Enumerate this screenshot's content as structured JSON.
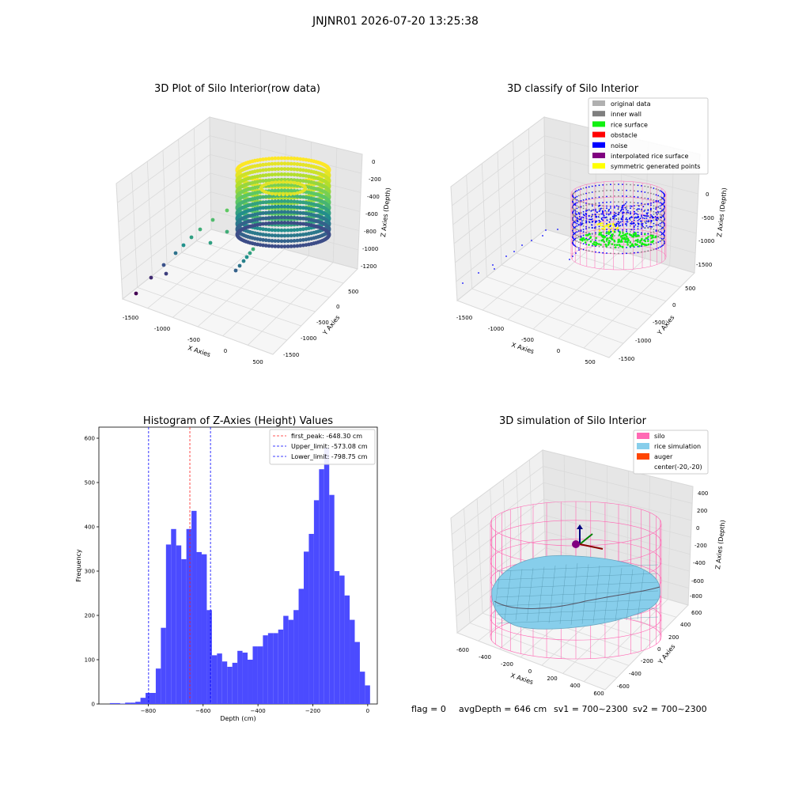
{
  "figure": {
    "suptitle": "JNJNR01 2026-07-20 13:25:38",
    "footer": {
      "flag": "flag = 0",
      "avg_depth": "avgDepth = 646 cm",
      "sv1": "sv1 = 700~2300",
      "sv2": "sv2 = 700~2300"
    }
  },
  "colors": {
    "hist_bar": "#4b4bff",
    "first_peak": "#ff2020",
    "limits": "#0000ff",
    "original": "#b0b0b0",
    "inner_wall": "#7f7f7f",
    "rice_surface": "#10f010",
    "obstacle": "#ff0000",
    "noise": "#0000ff",
    "interp": "#800080",
    "symmetric": "#ffff00",
    "silo": "#ff69b4",
    "rice_sim": "#87ceeb",
    "auger": "#ff4500"
  },
  "chart_data": [
    {
      "type": "scatter",
      "title": "3D Plot of Silo Interior(row data)",
      "xlabel": "X Axies",
      "ylabel": "Y Axies",
      "zlabel": "Z Axies (Depth)",
      "x_ticks": [
        "-1500",
        "-1000",
        "-500",
        "0",
        "500"
      ],
      "y_ticks": [
        "500",
        "0",
        "-500",
        "-1000",
        "-1500"
      ],
      "z_ticks": [
        "0",
        "-200",
        "-400",
        "-600",
        "-800",
        "-1000",
        "-1200"
      ],
      "colormap": "viridis"
    },
    {
      "type": "scatter",
      "title": "3D classify of Silo Interior",
      "xlabel": "X Axies",
      "ylabel": "Y Axies",
      "zlabel": "Z Axies (Depth)",
      "x_ticks": [
        "-1500",
        "-1000",
        "-500",
        "0",
        "500"
      ],
      "y_ticks": [
        "500",
        "0",
        "-500",
        "-1000",
        "-1500"
      ],
      "z_ticks": [
        "0",
        "-500",
        "-1000",
        "-1500"
      ],
      "legend": [
        "original data",
        "inner wall",
        "rice surface",
        "obstacle",
        "noise",
        "interpolated rice surface",
        "symmetric generated points"
      ],
      "legend_loc": "top-right"
    },
    {
      "type": "bar",
      "title": "Histogram of Z-Axies (Height) Values",
      "xlabel": "Depth (cm)",
      "ylabel": "Frequency",
      "xlim": [
        -980,
        35
      ],
      "ylim": [
        0,
        625
      ],
      "x_ticks": [
        -800,
        -600,
        -400,
        -200,
        0
      ],
      "y_ticks": [
        0,
        100,
        200,
        300,
        400,
        500,
        600
      ],
      "bin_width": 18.6,
      "bin_starts": [
        -940,
        -921.4,
        -902.8,
        -884.2,
        -865.6,
        -847,
        -828.4,
        -809.8,
        -791.2,
        -772.6,
        -754,
        -735.4,
        -716.8,
        -698.2,
        -679.6,
        -661,
        -642.4,
        -623.8,
        -605.2,
        -586.6,
        -568,
        -549.4,
        -530.8,
        -512.2,
        -493.6,
        -475,
        -456.4,
        -437.8,
        -419.2,
        -400.6,
        -382,
        -363.4,
        -344.8,
        -326.2,
        -307.6,
        -289,
        -270.4,
        -251.8,
        -233.2,
        -214.6,
        -196,
        -177.4,
        -158.8,
        -140.2,
        -121.6,
        -103,
        -84.4,
        -65.8,
        -47.2,
        -28.6,
        -10
      ],
      "values": [
        2,
        2,
        1,
        3,
        3,
        5,
        14,
        25,
        25,
        80,
        172,
        360,
        395,
        358,
        327,
        395,
        436,
        343,
        338,
        212,
        110,
        114,
        96,
        84,
        93,
        120,
        116,
        100,
        130,
        130,
        155,
        160,
        160,
        168,
        199,
        190,
        212,
        260,
        344,
        384,
        460,
        530,
        578,
        472,
        300,
        290,
        245,
        190,
        140,
        73,
        42
      ],
      "lines": [
        {
          "label": "first_peak: -648.30 cm",
          "x": -648.3,
          "style": "red-dashed"
        },
        {
          "label": "Upper_limit: -573.08 cm",
          "x": -573.08,
          "style": "blue-dashed"
        },
        {
          "label": "Lower_limit: -798.75 cm",
          "x": -798.75,
          "style": "blue-dashed"
        }
      ],
      "legend_loc": "top-right"
    },
    {
      "type": "scatter",
      "title": "3D simulation of Silo Interior",
      "xlabel": "X Axies",
      "ylabel": "Y Axies",
      "zlabel": "Z Axies (Depth)",
      "x_ticks": [
        "-600",
        "-400",
        "-200",
        "0",
        "200",
        "400",
        "600"
      ],
      "y_ticks": [
        "600",
        "400",
        "200",
        "0",
        "-200",
        "-400",
        "-600"
      ],
      "z_ticks": [
        "400",
        "200",
        "0",
        "-200",
        "-400",
        "-600",
        "-800"
      ],
      "legend": [
        "silo",
        "rice simulation",
        "auger",
        "center(-20,-20)"
      ],
      "legend_loc": "top-right"
    }
  ]
}
